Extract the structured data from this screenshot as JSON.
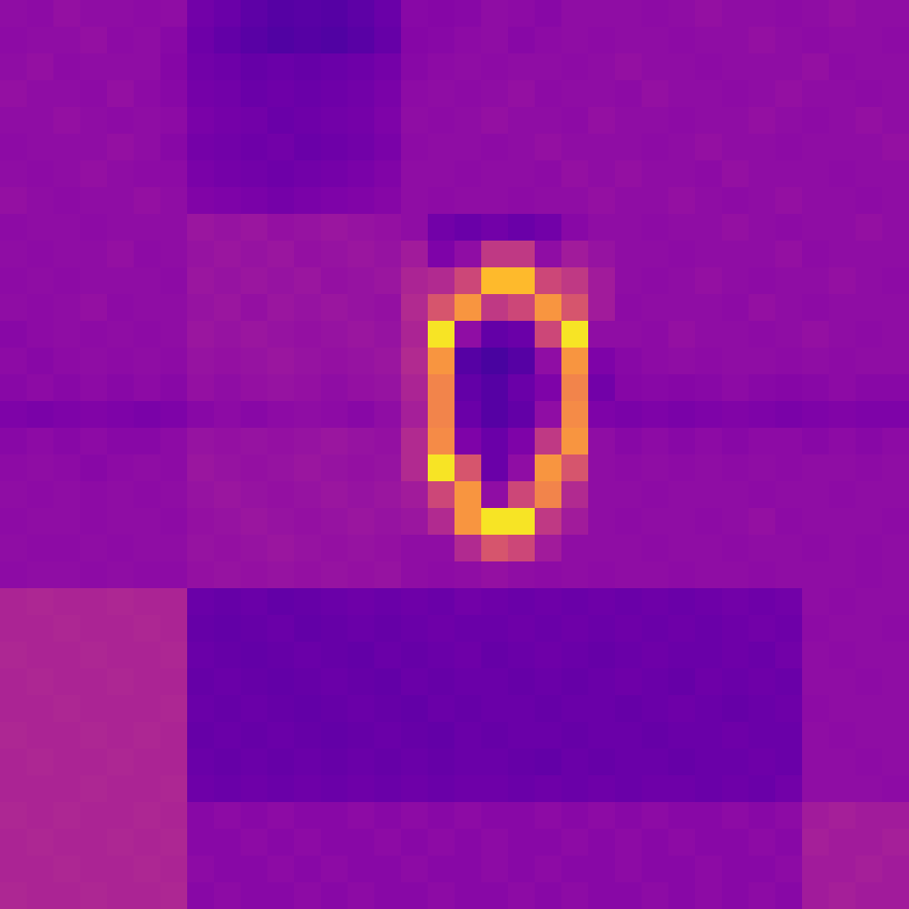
{
  "chart_data": {
    "type": "heatmap",
    "color": "plasma",
    "color_range": [
      0,
      1
    ],
    "tick_labels": false,
    "cells": [
      [
        0.3,
        0.29,
        0.31,
        0.3,
        0.3,
        0.29,
        0.3,
        0.22,
        0.2,
        0.17,
        0.15,
        0.16,
        0.15,
        0.17,
        0.2,
        0.28,
        0.27,
        0.28,
        0.3,
        0.29,
        0.28,
        0.3,
        0.3,
        0.3,
        0.29,
        0.3,
        0.31,
        0.3,
        0.3,
        0.29,
        0.3,
        0.31,
        0.3,
        0.3
      ],
      [
        0.29,
        0.3,
        0.3,
        0.31,
        0.29,
        0.3,
        0.28,
        0.21,
        0.18,
        0.16,
        0.14,
        0.15,
        0.14,
        0.16,
        0.19,
        0.27,
        0.28,
        0.29,
        0.3,
        0.28,
        0.29,
        0.3,
        0.29,
        0.3,
        0.3,
        0.29,
        0.3,
        0.3,
        0.31,
        0.3,
        0.29,
        0.3,
        0.3,
        0.29
      ],
      [
        0.3,
        0.31,
        0.29,
        0.3,
        0.3,
        0.3,
        0.27,
        0.22,
        0.21,
        0.19,
        0.2,
        0.19,
        0.2,
        0.21,
        0.23,
        0.28,
        0.29,
        0.3,
        0.29,
        0.3,
        0.3,
        0.29,
        0.3,
        0.31,
        0.3,
        0.3,
        0.29,
        0.3,
        0.3,
        0.3,
        0.31,
        0.29,
        0.3,
        0.3
      ],
      [
        0.31,
        0.3,
        0.3,
        0.29,
        0.31,
        0.29,
        0.28,
        0.23,
        0.22,
        0.2,
        0.21,
        0.2,
        0.21,
        0.22,
        0.24,
        0.29,
        0.3,
        0.29,
        0.3,
        0.31,
        0.29,
        0.3,
        0.3,
        0.29,
        0.31,
        0.3,
        0.3,
        0.29,
        0.3,
        0.31,
        0.3,
        0.3,
        0.29,
        0.3
      ],
      [
        0.3,
        0.3,
        0.31,
        0.3,
        0.29,
        0.3,
        0.29,
        0.24,
        0.23,
        0.22,
        0.2,
        0.21,
        0.22,
        0.23,
        0.25,
        0.3,
        0.29,
        0.3,
        0.31,
        0.3,
        0.3,
        0.29,
        0.31,
        0.3,
        0.3,
        0.29,
        0.3,
        0.3,
        0.31,
        0.3,
        0.29,
        0.3,
        0.31,
        0.3
      ],
      [
        0.29,
        0.3,
        0.3,
        0.3,
        0.31,
        0.3,
        0.28,
        0.23,
        0.22,
        0.21,
        0.22,
        0.2,
        0.21,
        0.22,
        0.24,
        0.29,
        0.3,
        0.3,
        0.29,
        0.3,
        0.31,
        0.3,
        0.3,
        0.3,
        0.29,
        0.3,
        0.31,
        0.3,
        0.3,
        0.29,
        0.3,
        0.3,
        0.3,
        0.31
      ],
      [
        0.3,
        0.29,
        0.3,
        0.31,
        0.3,
        0.29,
        0.29,
        0.24,
        0.23,
        0.22,
        0.21,
        0.22,
        0.23,
        0.24,
        0.26,
        0.3,
        0.3,
        0.29,
        0.3,
        0.3,
        0.29,
        0.31,
        0.3,
        0.31,
        0.3,
        0.3,
        0.29,
        0.31,
        0.3,
        0.3,
        0.3,
        0.29,
        0.3,
        0.3
      ],
      [
        0.31,
        0.3,
        0.29,
        0.3,
        0.3,
        0.31,
        0.3,
        0.26,
        0.25,
        0.24,
        0.23,
        0.24,
        0.25,
        0.26,
        0.27,
        0.3,
        0.29,
        0.3,
        0.3,
        0.29,
        0.3,
        0.3,
        0.31,
        0.3,
        0.3,
        0.31,
        0.3,
        0.29,
        0.3,
        0.31,
        0.3,
        0.3,
        0.29,
        0.3
      ],
      [
        0.29,
        0.3,
        0.3,
        0.29,
        0.3,
        0.3,
        0.3,
        0.33,
        0.32,
        0.33,
        0.31,
        0.32,
        0.33,
        0.32,
        0.31,
        0.3,
        0.22,
        0.2,
        0.22,
        0.2,
        0.22,
        0.28,
        0.3,
        0.3,
        0.29,
        0.3,
        0.3,
        0.31,
        0.3,
        0.29,
        0.3,
        0.3,
        0.31,
        0.3
      ],
      [
        0.3,
        0.29,
        0.3,
        0.3,
        0.31,
        0.29,
        0.3,
        0.32,
        0.33,
        0.32,
        0.33,
        0.31,
        0.32,
        0.33,
        0.32,
        0.35,
        0.25,
        0.3,
        0.45,
        0.45,
        0.3,
        0.35,
        0.32,
        0.3,
        0.3,
        0.29,
        0.3,
        0.3,
        0.3,
        0.31,
        0.29,
        0.3,
        0.3,
        0.3
      ],
      [
        0.29,
        0.3,
        0.29,
        0.3,
        0.3,
        0.3,
        0.29,
        0.33,
        0.32,
        0.33,
        0.32,
        0.33,
        0.31,
        0.32,
        0.33,
        0.38,
        0.4,
        0.5,
        0.85,
        0.85,
        0.5,
        0.45,
        0.35,
        0.3,
        0.29,
        0.3,
        0.31,
        0.3,
        0.29,
        0.3,
        0.3,
        0.31,
        0.3,
        0.29
      ],
      [
        0.3,
        0.29,
        0.3,
        0.31,
        0.29,
        0.3,
        0.3,
        0.32,
        0.33,
        0.31,
        0.33,
        0.32,
        0.33,
        0.32,
        0.31,
        0.4,
        0.55,
        0.75,
        0.45,
        0.5,
        0.75,
        0.55,
        0.35,
        0.29,
        0.3,
        0.3,
        0.3,
        0.29,
        0.31,
        0.3,
        0.29,
        0.3,
        0.3,
        0.3
      ],
      [
        0.28,
        0.29,
        0.3,
        0.29,
        0.3,
        0.29,
        0.3,
        0.33,
        0.32,
        0.33,
        0.32,
        0.31,
        0.32,
        0.33,
        0.32,
        0.38,
        0.95,
        0.3,
        0.18,
        0.2,
        0.5,
        0.95,
        0.3,
        0.3,
        0.29,
        0.31,
        0.3,
        0.3,
        0.29,
        0.3,
        0.31,
        0.3,
        0.29,
        0.3
      ],
      [
        0.29,
        0.28,
        0.29,
        0.3,
        0.29,
        0.3,
        0.29,
        0.32,
        0.31,
        0.32,
        0.33,
        0.32,
        0.31,
        0.32,
        0.33,
        0.4,
        0.75,
        0.15,
        0.12,
        0.15,
        0.3,
        0.75,
        0.25,
        0.28,
        0.29,
        0.3,
        0.29,
        0.3,
        0.3,
        0.29,
        0.3,
        0.29,
        0.3,
        0.3
      ],
      [
        0.28,
        0.29,
        0.28,
        0.29,
        0.28,
        0.29,
        0.28,
        0.31,
        0.3,
        0.31,
        0.32,
        0.31,
        0.3,
        0.31,
        0.32,
        0.38,
        0.7,
        0.18,
        0.15,
        0.2,
        0.25,
        0.7,
        0.22,
        0.27,
        0.28,
        0.27,
        0.28,
        0.29,
        0.28,
        0.27,
        0.28,
        0.29,
        0.28,
        0.28
      ],
      [
        0.25,
        0.24,
        0.25,
        0.26,
        0.25,
        0.24,
        0.25,
        0.28,
        0.29,
        0.28,
        0.29,
        0.3,
        0.29,
        0.28,
        0.3,
        0.36,
        0.7,
        0.2,
        0.15,
        0.18,
        0.3,
        0.72,
        0.25,
        0.24,
        0.25,
        0.24,
        0.25,
        0.26,
        0.25,
        0.24,
        0.25,
        0.26,
        0.25,
        0.25
      ],
      [
        0.28,
        0.29,
        0.28,
        0.29,
        0.28,
        0.28,
        0.29,
        0.32,
        0.31,
        0.32,
        0.31,
        0.32,
        0.33,
        0.32,
        0.31,
        0.4,
        0.72,
        0.25,
        0.2,
        0.25,
        0.45,
        0.75,
        0.3,
        0.28,
        0.29,
        0.28,
        0.29,
        0.28,
        0.29,
        0.29,
        0.28,
        0.29,
        0.28,
        0.29
      ],
      [
        0.29,
        0.3,
        0.29,
        0.28,
        0.29,
        0.3,
        0.29,
        0.33,
        0.32,
        0.31,
        0.32,
        0.33,
        0.32,
        0.31,
        0.32,
        0.4,
        0.95,
        0.55,
        0.2,
        0.3,
        0.75,
        0.55,
        0.3,
        0.29,
        0.3,
        0.29,
        0.3,
        0.29,
        0.3,
        0.29,
        0.3,
        0.3,
        0.29,
        0.3
      ],
      [
        0.3,
        0.29,
        0.3,
        0.29,
        0.3,
        0.29,
        0.3,
        0.32,
        0.33,
        0.32,
        0.31,
        0.32,
        0.33,
        0.32,
        0.33,
        0.35,
        0.5,
        0.75,
        0.3,
        0.5,
        0.7,
        0.4,
        0.3,
        0.3,
        0.29,
        0.3,
        0.3,
        0.3,
        0.29,
        0.3,
        0.3,
        0.29,
        0.3,
        0.3
      ],
      [
        0.29,
        0.3,
        0.3,
        0.29,
        0.3,
        0.3,
        0.29,
        0.31,
        0.32,
        0.33,
        0.32,
        0.31,
        0.32,
        0.33,
        0.32,
        0.33,
        0.4,
        0.75,
        0.95,
        0.95,
        0.45,
        0.35,
        0.3,
        0.29,
        0.3,
        0.3,
        0.29,
        0.3,
        0.31,
        0.29,
        0.3,
        0.3,
        0.3,
        0.29
      ],
      [
        0.3,
        0.29,
        0.29,
        0.3,
        0.29,
        0.3,
        0.3,
        0.32,
        0.31,
        0.32,
        0.33,
        0.32,
        0.31,
        0.32,
        0.31,
        0.3,
        0.3,
        0.4,
        0.55,
        0.5,
        0.35,
        0.3,
        0.3,
        0.3,
        0.29,
        0.3,
        0.3,
        0.29,
        0.3,
        0.3,
        0.29,
        0.3,
        0.29,
        0.3
      ],
      [
        0.29,
        0.3,
        0.3,
        0.29,
        0.3,
        0.29,
        0.29,
        0.31,
        0.32,
        0.31,
        0.32,
        0.31,
        0.32,
        0.31,
        0.32,
        0.3,
        0.29,
        0.3,
        0.31,
        0.3,
        0.29,
        0.3,
        0.29,
        0.3,
        0.3,
        0.29,
        0.3,
        0.3,
        0.29,
        0.3,
        0.3,
        0.3,
        0.29,
        0.3
      ],
      [
        0.38,
        0.39,
        0.38,
        0.38,
        0.39,
        0.38,
        0.38,
        0.2,
        0.19,
        0.2,
        0.18,
        0.19,
        0.2,
        0.21,
        0.2,
        0.21,
        0.2,
        0.22,
        0.21,
        0.2,
        0.21,
        0.2,
        0.21,
        0.2,
        0.21,
        0.2,
        0.21,
        0.22,
        0.21,
        0.22,
        0.3,
        0.29,
        0.3,
        0.3
      ],
      [
        0.38,
        0.38,
        0.39,
        0.38,
        0.38,
        0.39,
        0.38,
        0.19,
        0.18,
        0.19,
        0.2,
        0.18,
        0.19,
        0.2,
        0.19,
        0.2,
        0.21,
        0.2,
        0.2,
        0.21,
        0.2,
        0.21,
        0.2,
        0.21,
        0.2,
        0.21,
        0.2,
        0.21,
        0.22,
        0.21,
        0.29,
        0.3,
        0.3,
        0.29
      ],
      [
        0.39,
        0.38,
        0.38,
        0.39,
        0.38,
        0.38,
        0.39,
        0.2,
        0.19,
        0.18,
        0.19,
        0.2,
        0.19,
        0.18,
        0.2,
        0.19,
        0.2,
        0.21,
        0.19,
        0.2,
        0.21,
        0.2,
        0.19,
        0.2,
        0.21,
        0.2,
        0.2,
        0.21,
        0.2,
        0.22,
        0.3,
        0.29,
        0.3,
        0.3
      ],
      [
        0.38,
        0.39,
        0.38,
        0.38,
        0.39,
        0.38,
        0.38,
        0.19,
        0.2,
        0.19,
        0.18,
        0.19,
        0.2,
        0.19,
        0.18,
        0.2,
        0.19,
        0.2,
        0.2,
        0.19,
        0.2,
        0.19,
        0.2,
        0.21,
        0.2,
        0.19,
        0.21,
        0.2,
        0.21,
        0.2,
        0.3,
        0.3,
        0.29,
        0.3
      ],
      [
        0.38,
        0.38,
        0.39,
        0.38,
        0.38,
        0.38,
        0.39,
        0.2,
        0.19,
        0.2,
        0.19,
        0.18,
        0.19,
        0.2,
        0.19,
        0.18,
        0.2,
        0.19,
        0.2,
        0.2,
        0.19,
        0.2,
        0.2,
        0.19,
        0.2,
        0.21,
        0.2,
        0.19,
        0.2,
        0.21,
        0.29,
        0.3,
        0.3,
        0.3
      ],
      [
        0.39,
        0.38,
        0.38,
        0.39,
        0.38,
        0.39,
        0.38,
        0.19,
        0.2,
        0.19,
        0.2,
        0.19,
        0.18,
        0.19,
        0.2,
        0.19,
        0.18,
        0.2,
        0.19,
        0.2,
        0.2,
        0.19,
        0.2,
        0.2,
        0.19,
        0.2,
        0.2,
        0.21,
        0.2,
        0.2,
        0.3,
        0.29,
        0.3,
        0.3
      ],
      [
        0.38,
        0.39,
        0.38,
        0.38,
        0.39,
        0.38,
        0.38,
        0.2,
        0.19,
        0.2,
        0.19,
        0.2,
        0.19,
        0.2,
        0.19,
        0.2,
        0.19,
        0.2,
        0.2,
        0.19,
        0.18,
        0.2,
        0.19,
        0.2,
        0.2,
        0.19,
        0.2,
        0.2,
        0.21,
        0.2,
        0.3,
        0.3,
        0.29,
        0.3
      ],
      [
        0.38,
        0.38,
        0.38,
        0.39,
        0.38,
        0.38,
        0.39,
        0.21,
        0.2,
        0.21,
        0.2,
        0.21,
        0.2,
        0.21,
        0.2,
        0.21,
        0.2,
        0.21,
        0.21,
        0.2,
        0.21,
        0.2,
        0.21,
        0.2,
        0.21,
        0.21,
        0.2,
        0.21,
        0.2,
        0.22,
        0.3,
        0.3,
        0.3,
        0.29
      ],
      [
        0.39,
        0.38,
        0.39,
        0.38,
        0.38,
        0.39,
        0.38,
        0.28,
        0.29,
        0.28,
        0.29,
        0.28,
        0.28,
        0.29,
        0.28,
        0.29,
        0.28,
        0.29,
        0.28,
        0.28,
        0.29,
        0.28,
        0.29,
        0.28,
        0.29,
        0.28,
        0.28,
        0.29,
        0.28,
        0.29,
        0.35,
        0.36,
        0.35,
        0.35
      ],
      [
        0.38,
        0.39,
        0.38,
        0.38,
        0.39,
        0.38,
        0.39,
        0.28,
        0.28,
        0.29,
        0.28,
        0.29,
        0.28,
        0.28,
        0.29,
        0.28,
        0.29,
        0.28,
        0.29,
        0.28,
        0.28,
        0.29,
        0.28,
        0.29,
        0.28,
        0.29,
        0.28,
        0.28,
        0.29,
        0.28,
        0.36,
        0.35,
        0.35,
        0.36
      ],
      [
        0.38,
        0.38,
        0.39,
        0.38,
        0.38,
        0.39,
        0.38,
        0.29,
        0.28,
        0.28,
        0.29,
        0.28,
        0.29,
        0.28,
        0.28,
        0.29,
        0.28,
        0.28,
        0.29,
        0.28,
        0.29,
        0.28,
        0.28,
        0.29,
        0.28,
        0.28,
        0.29,
        0.28,
        0.28,
        0.29,
        0.35,
        0.35,
        0.36,
        0.35
      ],
      [
        0.39,
        0.38,
        0.38,
        0.39,
        0.38,
        0.38,
        0.39,
        0.28,
        0.29,
        0.28,
        0.28,
        0.29,
        0.28,
        0.29,
        0.28,
        0.28,
        0.29,
        0.28,
        0.28,
        0.29,
        0.28,
        0.29,
        0.28,
        0.28,
        0.29,
        0.28,
        0.29,
        0.28,
        0.29,
        0.28,
        0.35,
        0.36,
        0.35,
        0.35
      ]
    ]
  }
}
